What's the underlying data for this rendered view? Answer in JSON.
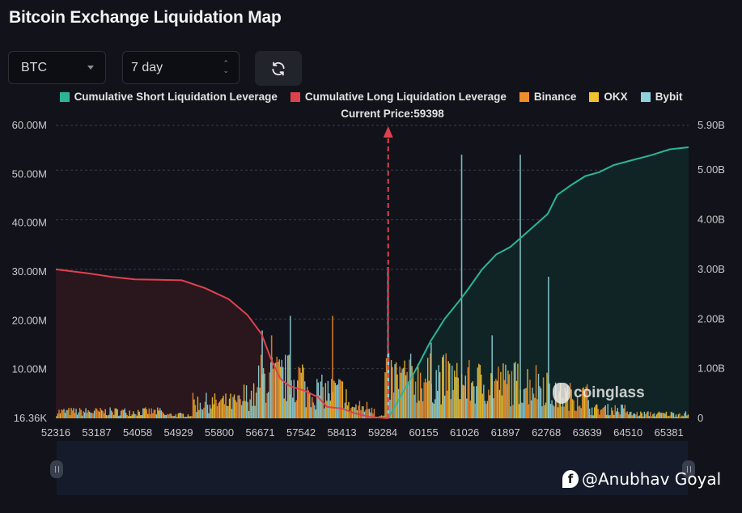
{
  "header": {
    "title": "Bitcoin Exchange Liquidation Map"
  },
  "controls": {
    "symbol_select": {
      "value": "BTC",
      "icon": "caret-down-icon"
    },
    "period_select": {
      "value": "7 day",
      "icon": "up-down-arrows-icon"
    },
    "refresh_button": {
      "icon": "refresh-icon"
    }
  },
  "colors": {
    "background": "#12131a",
    "short_cumulative": "#2bb596",
    "long_cumulative": "#e0414f",
    "binance": "#f08c2a",
    "okx": "#f2c12e",
    "bybit": "#8ed3dc",
    "current_price_marker": "#e0414f"
  },
  "watermark": {
    "brand": "coinglass",
    "credit": "@Anubhav Goyal"
  },
  "chart_data": {
    "type": "bar",
    "title": "Bitcoin Exchange Liquidation Map",
    "legend": [
      {
        "name": "Cumulative Short Liquidation Leverage",
        "color": "#2bb596"
      },
      {
        "name": "Cumulative Long Liquidation Leverage",
        "color": "#e0414f"
      },
      {
        "name": "Binance",
        "color": "#f08c2a"
      },
      {
        "name": "OKX",
        "color": "#f2c12e"
      },
      {
        "name": "Bybit",
        "color": "#8ed3dc"
      }
    ],
    "legend_position": "top-center",
    "current_price_label": "Current Price:59398",
    "current_price": 59398,
    "xlabel": "",
    "x_range": [
      52316,
      65800
    ],
    "x_ticks": [
      "52316",
      "53187",
      "54058",
      "54929",
      "55800",
      "56671",
      "57542",
      "58413",
      "59284",
      "60155",
      "61026",
      "61897",
      "62768",
      "63639",
      "64510",
      "65381"
    ],
    "y_left": {
      "label": "",
      "range": [
        0,
        60000000
      ],
      "ticks": [
        "16.36K",
        "10.00M",
        "20.00M",
        "30.00M",
        "40.00M",
        "50.00M",
        "60.00M"
      ]
    },
    "y_right": {
      "label": "",
      "range": [
        0,
        5900000000
      ],
      "ticks": [
        "0",
        "1.00B",
        "2.00B",
        "3.00B",
        "4.00B",
        "5.00B",
        "5.90B"
      ]
    },
    "grid": true,
    "cumulative_long": {
      "axis": "right",
      "x": [
        52316,
        53000,
        53500,
        54000,
        54500,
        55000,
        55500,
        56000,
        56400,
        56700,
        56900,
        57100,
        57300,
        57600,
        57900,
        58100,
        58400,
        58700,
        59000,
        59284,
        59398
      ],
      "y": [
        3000000000,
        2920000000,
        2850000000,
        2800000000,
        2790000000,
        2780000000,
        2620000000,
        2400000000,
        2080000000,
        1700000000,
        1200000000,
        800000000,
        650000000,
        560000000,
        430000000,
        230000000,
        200000000,
        100000000,
        30000000,
        10000000,
        0
      ]
    },
    "cumulative_short": {
      "axis": "right",
      "x": [
        59398,
        59700,
        60000,
        60300,
        60600,
        60900,
        61100,
        61400,
        61700,
        62000,
        62300,
        62600,
        62800,
        63000,
        63300,
        63600,
        63900,
        64200,
        64600,
        65000,
        65400,
        65800
      ],
      "y": [
        0,
        500000000,
        1000000000,
        1550000000,
        2000000000,
        2350000000,
        2600000000,
        3000000000,
        3300000000,
        3450000000,
        3700000000,
        3950000000,
        4120000000,
        4500000000,
        4700000000,
        4880000000,
        4960000000,
        5100000000,
        5200000000,
        5300000000,
        5420000000,
        5460000000
      ]
    },
    "exchange_bars_note": "Dense per-price-level liquidation bars (left axis, M USD); peaks listed below",
    "exchange_bar_peaks": [
      {
        "x": 56700,
        "bybit": 18000000
      },
      {
        "x": 56900,
        "binance": 17000000
      },
      {
        "x": 57300,
        "bybit": 21000000
      },
      {
        "x": 58200,
        "binance": 21000000
      },
      {
        "x": 59380,
        "bybit": 31000000
      },
      {
        "x": 60300,
        "bybit": 15500000
      },
      {
        "x": 60950,
        "bybit": 54000000
      },
      {
        "x": 61600,
        "bybit": 17000000
      },
      {
        "x": 62200,
        "bybit": 54000000
      },
      {
        "x": 62800,
        "bybit": 29000000
      }
    ]
  }
}
